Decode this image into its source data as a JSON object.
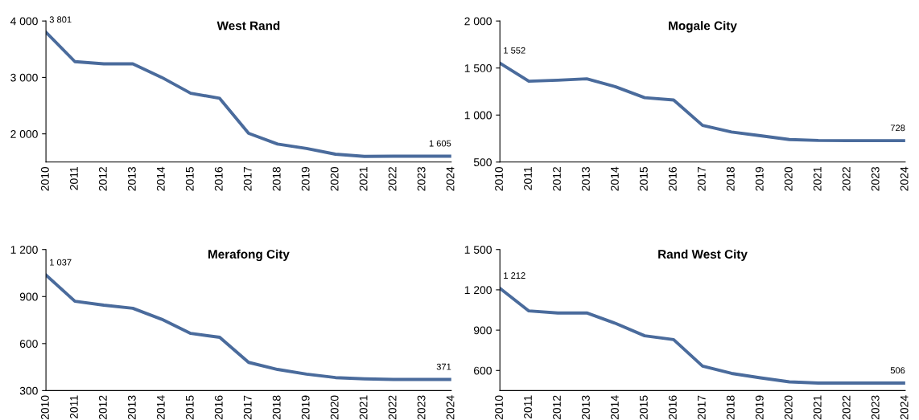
{
  "chart_data": [
    {
      "type": "line",
      "title": "West Rand",
      "categories": [
        "2010",
        "2011",
        "2012",
        "2013",
        "2014",
        "2015",
        "2016",
        "2017",
        "2018",
        "2019",
        "2020",
        "2021",
        "2022",
        "2023",
        "2024"
      ],
      "ylim": [
        1500,
        4000
      ],
      "yticks": [
        {
          "value": 2000,
          "label": "2 000"
        },
        {
          "value": 3000,
          "label": "3 000"
        },
        {
          "value": 4000,
          "label": "4 000"
        }
      ],
      "grid": false,
      "legend": false,
      "series": [
        {
          "color": "#4a6b9c",
          "values": [
            3801,
            3280,
            3240,
            3240,
            3000,
            2720,
            2630,
            2010,
            1820,
            1740,
            1640,
            1600,
            1605,
            1605,
            1605
          ],
          "value_labels": [
            "3 801",
            null,
            null,
            null,
            null,
            null,
            null,
            null,
            null,
            null,
            null,
            null,
            null,
            null,
            "1 605"
          ]
        }
      ]
    },
    {
      "type": "line",
      "title": "Mogale City",
      "categories": [
        "2010",
        "2011",
        "2012",
        "2013",
        "2014",
        "2015",
        "2016",
        "2017",
        "2018",
        "2019",
        "2020",
        "2021",
        "2022",
        "2023",
        "2024"
      ],
      "ylim": [
        500,
        2000
      ],
      "yticks": [
        500,
        {
          "value": 1000,
          "label": "1 000"
        },
        {
          "value": 1500,
          "label": "1 500"
        },
        {
          "value": 2000,
          "label": "2 000"
        }
      ],
      "grid": false,
      "legend": false,
      "series": [
        {
          "color": "#4a6b9c",
          "values": [
            1552,
            1360,
            1370,
            1385,
            1300,
            1185,
            1160,
            890,
            820,
            780,
            740,
            730,
            728,
            728,
            728
          ],
          "value_labels": [
            "1 552",
            null,
            null,
            null,
            null,
            null,
            null,
            null,
            null,
            null,
            null,
            null,
            null,
            null,
            "728"
          ]
        }
      ]
    },
    {
      "type": "line",
      "title": "Merafong City",
      "categories": [
        "2010",
        "2011",
        "2012",
        "2013",
        "2014",
        "2015",
        "2016",
        "2017",
        "2018",
        "2019",
        "2020",
        "2021",
        "2022",
        "2023",
        "2024"
      ],
      "ylim": [
        300,
        1200
      ],
      "yticks": [
        300,
        600,
        900,
        {
          "value": 1200,
          "label": "1 200"
        }
      ],
      "grid": false,
      "legend": false,
      "series": [
        {
          "color": "#4a6b9c",
          "values": [
            1037,
            870,
            845,
            825,
            755,
            665,
            640,
            480,
            435,
            405,
            383,
            375,
            371,
            371,
            371
          ],
          "value_labels": [
            "1 037",
            null,
            null,
            null,
            null,
            null,
            null,
            null,
            null,
            null,
            null,
            null,
            null,
            null,
            "371"
          ]
        }
      ]
    },
    {
      "type": "line",
      "title": "Rand West City",
      "categories": [
        "2010",
        "2011",
        "2012",
        "2013",
        "2014",
        "2015",
        "2016",
        "2017",
        "2018",
        "2019",
        "2020",
        "2021",
        "2022",
        "2023",
        "2024"
      ],
      "ylim": [
        450,
        1500
      ],
      "yticks": [
        600,
        900,
        {
          "value": 1200,
          "label": "1 200"
        },
        {
          "value": 1500,
          "label": "1 500"
        }
      ],
      "grid": false,
      "legend": false,
      "series": [
        {
          "color": "#4a6b9c",
          "values": [
            1212,
            1043,
            1028,
            1028,
            950,
            858,
            830,
            632,
            578,
            545,
            515,
            506,
            506,
            506,
            506
          ],
          "value_labels": [
            "1 212",
            null,
            null,
            null,
            null,
            null,
            null,
            null,
            null,
            null,
            null,
            null,
            null,
            null,
            "506"
          ]
        }
      ]
    }
  ]
}
